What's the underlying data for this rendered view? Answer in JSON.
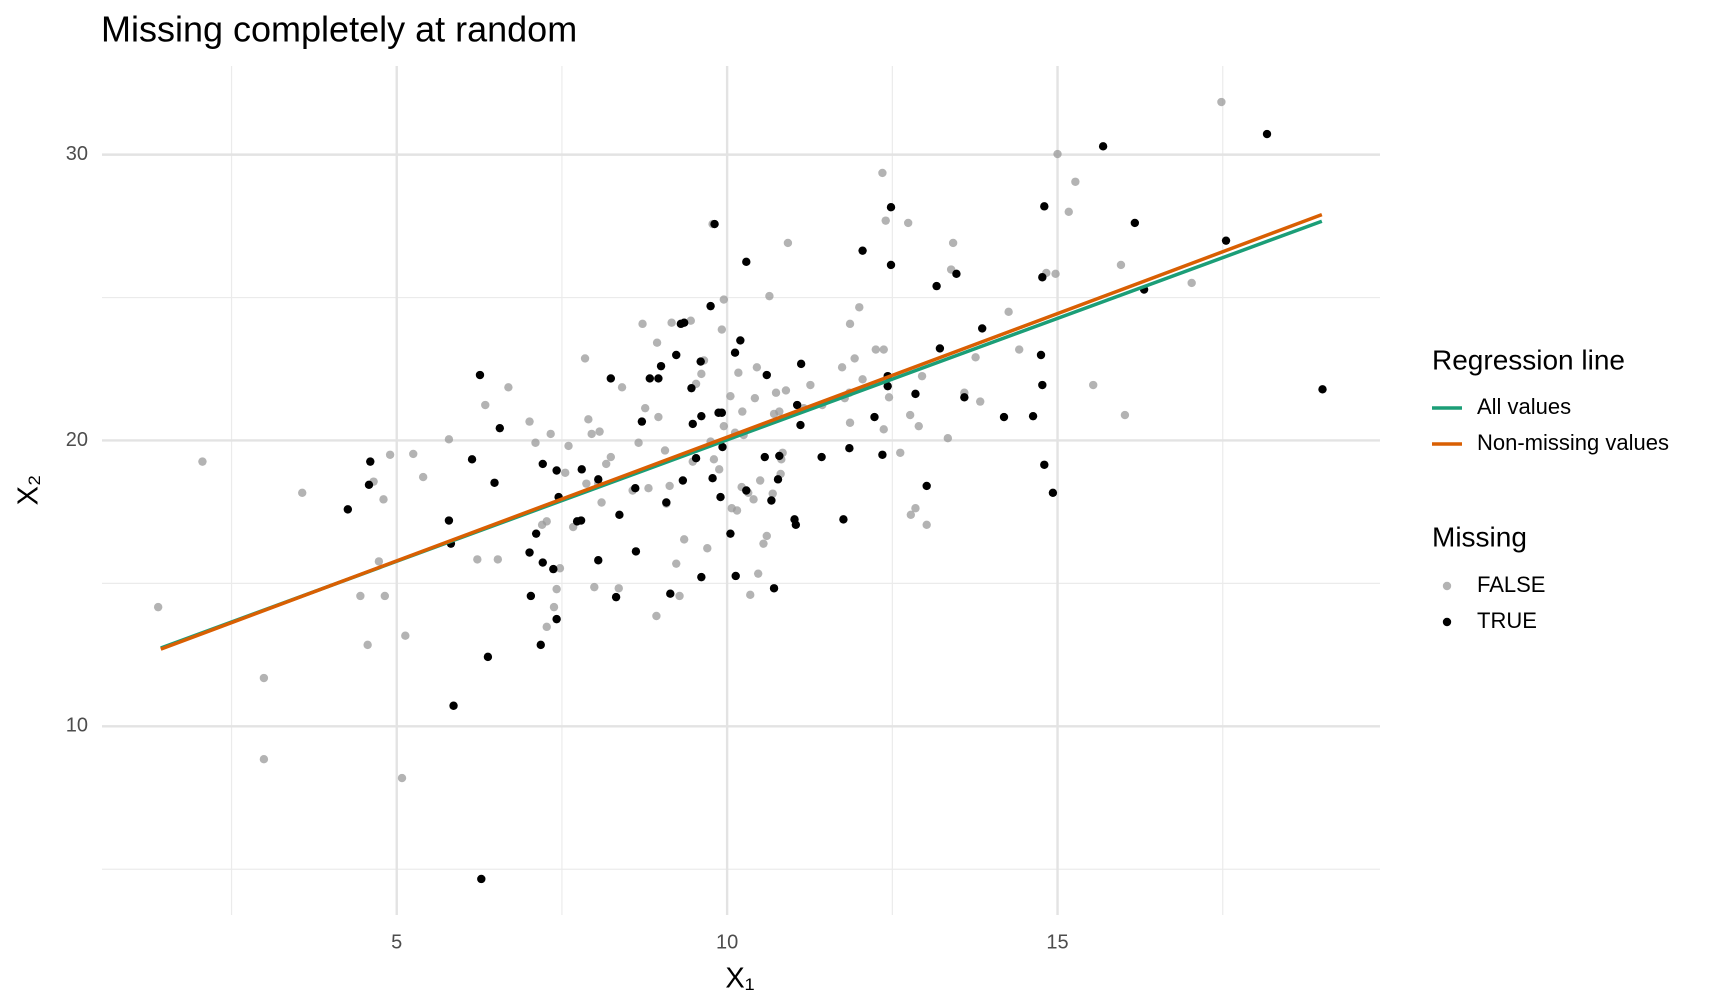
{
  "chart_data": {
    "type": "scatter",
    "title": "Missing completely at random",
    "xlabel": "X₁",
    "ylabel": "X₂",
    "xlim": [
      0.54,
      19.88
    ],
    "ylim": [
      3.4,
      33.1
    ],
    "xticks": [
      5,
      10,
      15
    ],
    "yticks": [
      10,
      20,
      30
    ],
    "minor_xticks": [
      2.5,
      7.5,
      12.5,
      17.5
    ],
    "minor_yticks": [
      5,
      15,
      25
    ],
    "grid": true,
    "legend_position": "right",
    "line_legend_title": "Regression line",
    "point_legend_title": "Missing",
    "lines": [
      {
        "name": "All values",
        "color": "#1b9e77",
        "x": [
          1.43,
          19.0
        ],
        "values": [
          12.74,
          27.67
        ]
      },
      {
        "name": "Non-missing values",
        "color": "#d95f02",
        "x": [
          1.43,
          19.0
        ],
        "values": [
          12.7,
          27.9
        ]
      }
    ],
    "series": [
      {
        "name": "FALSE",
        "color": "#999999",
        "x": [
          1.39,
          2.06,
          2.99,
          2.99,
          3.57,
          4.45,
          4.56,
          4.65,
          4.73,
          4.8,
          4.82,
          4.9,
          5.08,
          5.13,
          5.25,
          5.4,
          5.79,
          6.22,
          6.34,
          6.53,
          6.69,
          7.01,
          7.1,
          7.2,
          7.27,
          7.33,
          7.27,
          7.38,
          7.42,
          7.47,
          7.55,
          7.6,
          7.67,
          7.85,
          7.87,
          7.9,
          7.95,
          7.99,
          8.05,
          8.07,
          8.1,
          8.17,
          8.24,
          8.36,
          8.41,
          8.57,
          8.66,
          8.72,
          8.76,
          8.81,
          8.93,
          8.94,
          8.96,
          9.06,
          9.08,
          9.13,
          9.16,
          9.23,
          9.28,
          9.35,
          9.45,
          9.48,
          9.53,
          9.61,
          9.65,
          9.7,
          9.75,
          9.78,
          9.8,
          9.88,
          9.92,
          9.95,
          9.95,
          10.05,
          10.07,
          10.12,
          10.15,
          10.17,
          10.22,
          10.23,
          10.25,
          10.32,
          10.35,
          10.4,
          10.42,
          10.45,
          10.47,
          10.5,
          10.55,
          10.6,
          10.64,
          10.69,
          10.71,
          10.74,
          10.79,
          10.81,
          10.82,
          10.84,
          10.89,
          10.92,
          11.16,
          11.26,
          11.44,
          11.74,
          11.78,
          11.85,
          11.86,
          11.86,
          11.93,
          12.0,
          12.05,
          12.25,
          12.35,
          12.37,
          12.37,
          12.4,
          12.45,
          12.62,
          12.74,
          12.77,
          12.78,
          12.85,
          12.9,
          12.95,
          13.02,
          13.34,
          13.39,
          13.42,
          13.59,
          13.76,
          13.83,
          14.26,
          14.42,
          14.83,
          14.97,
          15.0,
          15.17,
          15.27,
          15.54,
          15.96,
          16.02,
          17.03,
          17.48
        ],
        "values": [
          14.17,
          19.26,
          11.69,
          8.85,
          18.17,
          14.56,
          12.85,
          18.56,
          15.77,
          17.94,
          14.56,
          19.5,
          8.19,
          13.17,
          19.53,
          18.72,
          20.04,
          15.84,
          21.24,
          15.84,
          21.86,
          20.66,
          19.92,
          17.05,
          17.17,
          20.23,
          13.48,
          14.17,
          14.8,
          15.53,
          18.87,
          19.81,
          16.97,
          22.87,
          18.49,
          20.74,
          20.23,
          14.87,
          18.49,
          20.31,
          17.83,
          19.18,
          19.42,
          14.83,
          21.86,
          18.25,
          19.92,
          24.08,
          21.13,
          18.33,
          13.86,
          23.42,
          20.82,
          19.65,
          17.79,
          18.41,
          24.12,
          15.69,
          14.56,
          16.54,
          24.19,
          19.26,
          21.98,
          22.33,
          22.8,
          16.23,
          19.96,
          27.57,
          19.34,
          18.99,
          23.88,
          24.93,
          20.5,
          21.55,
          17.63,
          20.27,
          17.55,
          22.37,
          18.37,
          21.01,
          20.19,
          18.17,
          14.6,
          17.94,
          21.48,
          22.56,
          15.34,
          18.6,
          16.39,
          16.66,
          25.05,
          18.14,
          20.93,
          21.67,
          21.01,
          18.83,
          19.34,
          19.57,
          21.75,
          26.91,
          21.13,
          21.94,
          21.24,
          22.56,
          21.48,
          21.67,
          20.62,
          24.08,
          22.87,
          24.66,
          22.14,
          23.18,
          29.36,
          23.18,
          20.39,
          27.69,
          21.51,
          19.57,
          27.61,
          20.89,
          17.4,
          17.63,
          20.5,
          22.25,
          17.05,
          20.08,
          25.98,
          26.91,
          21.67,
          22.91,
          21.36,
          24.5,
          23.18,
          25.86,
          25.83,
          30.02,
          28.0,
          29.05,
          21.94,
          26.14,
          20.89,
          25.51,
          31.84
        ]
      },
      {
        "name": "TRUE",
        "color": "#000000",
        "x": [
          4.26,
          4.6,
          4.58,
          5.79,
          5.82,
          5.86,
          6.14,
          6.26,
          6.28,
          6.38,
          6.48,
          6.56,
          7.01,
          7.03,
          7.11,
          7.18,
          7.21,
          7.21,
          7.37,
          7.42,
          7.42,
          7.45,
          7.73,
          7.79,
          7.8,
          8.05,
          8.05,
          8.24,
          8.32,
          8.37,
          8.61,
          8.62,
          8.71,
          8.83,
          8.96,
          9.0,
          9.08,
          9.14,
          9.23,
          9.3,
          9.33,
          9.35,
          9.46,
          9.48,
          9.53,
          9.6,
          9.61,
          9.61,
          9.75,
          9.78,
          9.81,
          9.87,
          9.9,
          9.92,
          9.93,
          10.05,
          10.12,
          10.13,
          10.2,
          10.29,
          10.29,
          10.57,
          10.6,
          10.67,
          10.71,
          10.77,
          10.79,
          11.02,
          11.04,
          11.06,
          11.11,
          11.12,
          11.43,
          11.76,
          11.85,
          12.05,
          12.23,
          12.35,
          12.43,
          12.43,
          12.48,
          12.48,
          12.85,
          13.02,
          13.17,
          13.22,
          13.47,
          13.59,
          13.86,
          14.19,
          14.63,
          14.75,
          14.77,
          14.77,
          14.8,
          14.8,
          14.93,
          15.69,
          16.17,
          16.31,
          17.55,
          18.17,
          19.01
        ],
        "values": [
          17.59,
          19.26,
          18.45,
          17.2,
          16.39,
          10.72,
          19.34,
          22.29,
          4.66,
          12.43,
          18.52,
          20.43,
          16.08,
          14.56,
          16.74,
          12.85,
          15.73,
          19.18,
          15.5,
          18.95,
          13.75,
          18.02,
          17.17,
          17.2,
          18.99,
          15.81,
          18.64,
          22.17,
          14.52,
          17.4,
          18.33,
          16.12,
          20.66,
          22.17,
          22.17,
          22.6,
          17.83,
          14.64,
          22.99,
          24.08,
          18.6,
          24.12,
          21.83,
          20.58,
          19.38,
          22.76,
          20.85,
          15.22,
          24.7,
          18.68,
          27.57,
          20.97,
          18.02,
          20.97,
          19.77,
          16.74,
          23.07,
          15.26,
          23.5,
          18.25,
          26.25,
          19.42,
          22.29,
          17.9,
          14.83,
          18.64,
          19.46,
          17.24,
          17.05,
          21.24,
          20.54,
          22.68,
          19.42,
          17.24,
          19.73,
          26.64,
          20.82,
          19.5,
          21.9,
          22.25,
          28.16,
          26.14,
          21.63,
          18.41,
          25.4,
          23.22,
          25.83,
          21.51,
          23.92,
          20.82,
          20.85,
          22.99,
          21.94,
          25.71,
          19.15,
          28.19,
          18.17,
          30.29,
          27.61,
          25.28,
          26.99,
          30.72,
          21.79
        ]
      }
    ]
  }
}
